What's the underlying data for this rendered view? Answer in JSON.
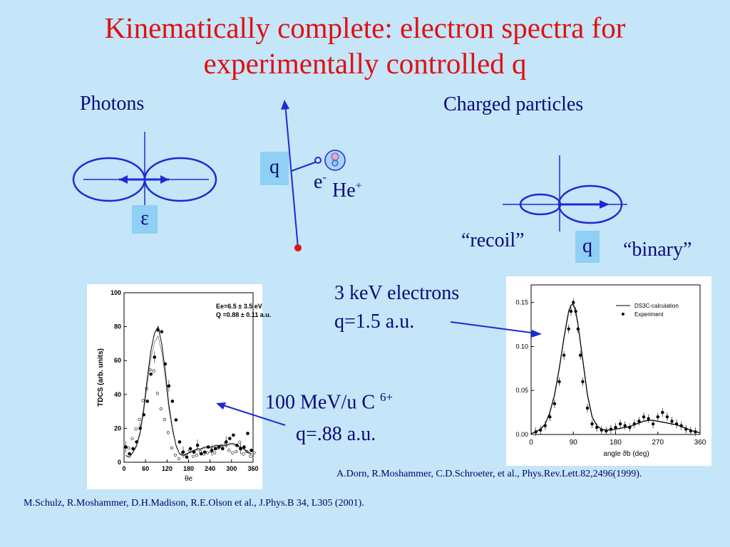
{
  "slide": {
    "title_line1": "Kinematically complete: electron spectra for",
    "title_line2": "experimentally controlled q"
  },
  "diagram": {
    "photons_label": "Photons",
    "epsilon_label": "ε",
    "q_label": "q",
    "electron_label": "e",
    "electron_sup": "-",
    "ion_label": "He",
    "ion_sup": "+",
    "charged_label": "Charged particles",
    "recoil_label": "“recoil”",
    "binary_label": "“binary”",
    "q_label_2": "q"
  },
  "annotations": {
    "left_line1": "100 MeV/u C",
    "left_sup": "6+",
    "left_line2": "q=.88 a.u.",
    "right_line1": "3 keV electrons",
    "right_line2": "q=1.5 a.u."
  },
  "references": {
    "right": "A.Dorn, R.Moshammer, C.D.Schroeter, et al., Phys.Rev.Lett.82,2496(1999).",
    "left": "M.Schulz, R.Moshammer, D.H.Madison, R.E.Olson et al., J.Phys.B 34, L305 (2001)."
  },
  "chart_data": [
    {
      "type": "scatter",
      "title": "",
      "xlabel": "θe",
      "ylabel": "TDCS (arb. units)",
      "xlim": [
        0,
        360
      ],
      "ylim": [
        0,
        100
      ],
      "x_ticks": [
        "0",
        "60",
        "120",
        "180",
        "240",
        "300",
        "360"
      ],
      "y_ticks": [
        "0",
        "20",
        "40",
        "60",
        "80",
        "100"
      ],
      "legend_lines": [
        "Ee=6.5 ± 3.5 eV",
        "Q =0.88 ± 0.11 a.u."
      ],
      "series": [
        {
          "x": [
            5,
            15,
            25,
            35,
            45,
            55,
            65,
            75,
            85,
            95,
            105,
            115,
            125,
            135,
            145,
            155,
            165,
            175,
            185,
            195,
            205,
            215,
            225,
            235,
            245,
            255,
            265,
            275,
            285,
            295,
            305,
            315,
            325,
            335,
            345,
            355
          ],
          "values": [
            9,
            5,
            8,
            12,
            20,
            28,
            36,
            52,
            62,
            78,
            77,
            58,
            45,
            36,
            25,
            12,
            6,
            3,
            8,
            6,
            10,
            5,
            6,
            9,
            7,
            8,
            9,
            8,
            12,
            14,
            16,
            10,
            8,
            9,
            17,
            7
          ]
        },
        {
          "x": [
            5,
            15,
            25,
            35,
            45,
            55,
            65,
            75,
            85,
            95,
            105,
            115,
            125,
            135,
            145,
            155,
            165,
            175,
            185,
            195,
            205,
            215,
            225,
            235,
            245,
            255,
            265,
            275,
            285,
            295,
            305,
            315,
            325,
            335,
            345,
            355
          ],
          "values": [
            4,
            3,
            6,
            10,
            18,
            32,
            50,
            66,
            76,
            80,
            70,
            54,
            34,
            20,
            10,
            5,
            4,
            5,
            6,
            7,
            8,
            8,
            9,
            9,
            9,
            10,
            10,
            10,
            10,
            11,
            11,
            10,
            9,
            8,
            6,
            5
          ]
        }
      ]
    },
    {
      "type": "scatter",
      "title": "",
      "xlabel": "angle ϑb (deg)",
      "ylabel": "",
      "xlim": [
        0,
        360
      ],
      "ylim": [
        0,
        0.17
      ],
      "x_ticks": [
        "0",
        "90",
        "180",
        "270",
        "360"
      ],
      "y_ticks": [
        "0.00",
        "0.05",
        "0.10",
        "0.15"
      ],
      "legend": [
        "DS3C-calculation",
        "Experiment"
      ],
      "series": [
        {
          "name": "Experiment",
          "x": [
            10,
            20,
            30,
            40,
            50,
            60,
            70,
            80,
            85,
            90,
            95,
            100,
            105,
            110,
            120,
            130,
            140,
            150,
            160,
            170,
            180,
            190,
            200,
            210,
            220,
            230,
            240,
            250,
            260,
            270,
            280,
            290,
            300,
            310,
            320,
            330,
            340,
            350
          ],
          "values": [
            0.003,
            0.005,
            0.01,
            0.02,
            0.035,
            0.06,
            0.09,
            0.12,
            0.14,
            0.15,
            0.14,
            0.12,
            0.09,
            0.06,
            0.03,
            0.012,
            0.008,
            0.005,
            0.004,
            0.006,
            0.008,
            0.012,
            0.01,
            0.008,
            0.012,
            0.015,
            0.02,
            0.018,
            0.012,
            0.02,
            0.025,
            0.02,
            0.015,
            0.012,
            0.01,
            0.006,
            0.004,
            0.003
          ]
        },
        {
          "name": "DS3C-calculation",
          "x": [
            0,
            10,
            20,
            30,
            40,
            50,
            60,
            70,
            80,
            85,
            90,
            95,
            100,
            110,
            120,
            130,
            140,
            150,
            160,
            170,
            180,
            190,
            200,
            210,
            220,
            230,
            240,
            250,
            260,
            270,
            280,
            290,
            300,
            310,
            320,
            330,
            340,
            350,
            360
          ],
          "values": [
            0.001,
            0.003,
            0.006,
            0.012,
            0.025,
            0.045,
            0.075,
            0.11,
            0.14,
            0.147,
            0.148,
            0.14,
            0.125,
            0.085,
            0.045,
            0.02,
            0.01,
            0.006,
            0.005,
            0.005,
            0.006,
            0.007,
            0.008,
            0.009,
            0.011,
            0.013,
            0.015,
            0.016,
            0.016,
            0.015,
            0.014,
            0.013,
            0.012,
            0.011,
            0.009,
            0.007,
            0.005,
            0.003,
            0.002
          ]
        }
      ]
    }
  ]
}
